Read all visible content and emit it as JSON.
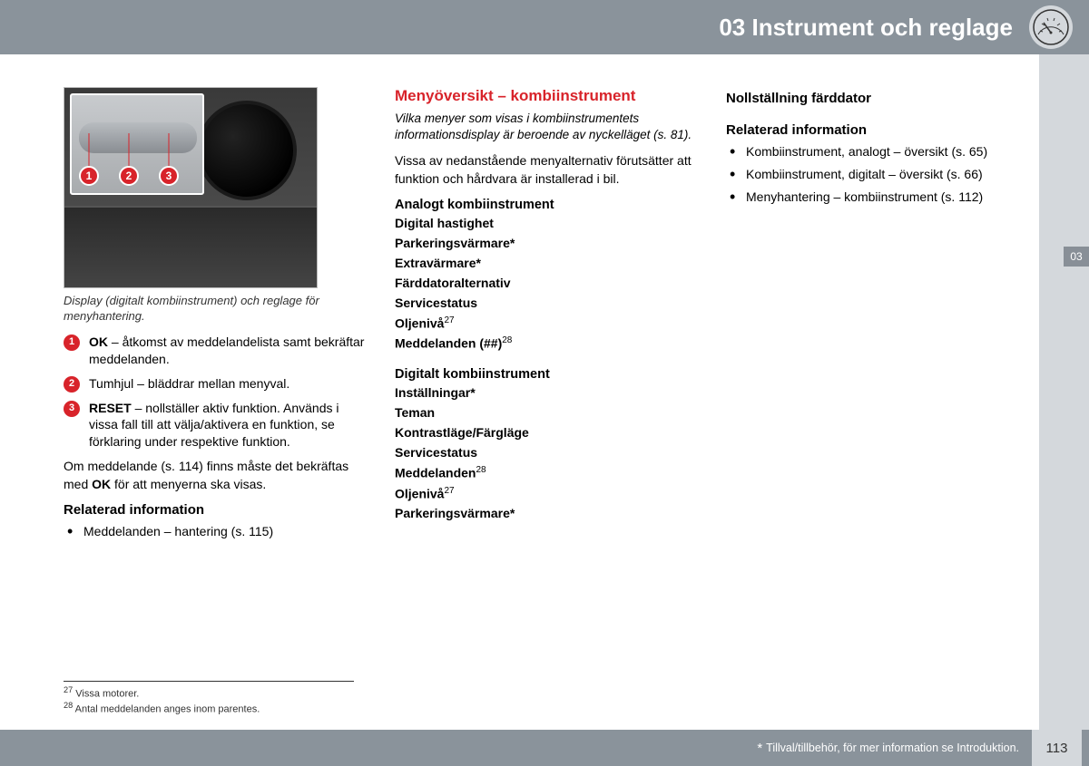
{
  "header": {
    "title": "03 Instrument och reglage",
    "sectionTab": "03"
  },
  "figure": {
    "caption": "Display (digitalt kombiinstrument) och reglage för menyhantering.",
    "callouts": [
      "1",
      "2",
      "3"
    ]
  },
  "legend": [
    {
      "num": "1",
      "textHtml": "<b>OK</b> – åtkomst av meddelandelista samt bekräftar meddelanden."
    },
    {
      "num": "2",
      "textHtml": "Tumhjul – bläddrar mellan menyval."
    },
    {
      "num": "3",
      "textHtml": "<b>RESET</b> – nollställer aktiv funktion. Används i vissa fall till att välja/aktivera en funktion, se förklaring under respektive funktion."
    }
  ],
  "col1": {
    "paraHtml": "Om meddelande (s. 114) finns måste det bekräftas med <b>OK</b> för att menyerna ska visas.",
    "relHeading": "Relaterad information",
    "relItems": [
      "Meddelanden – hantering (s. 115)"
    ]
  },
  "col2": {
    "title": "Menyöversikt – kombiinstrument",
    "intro": "Vilka menyer som visas i kombiinstrumentets informationsdisplay är beroende av nyckelläget (s. 81).",
    "para": "Vissa av nedanstående menyalternativ förutsätter att funktion och hårdvara är installerad i bil.",
    "group1Heading": "Analogt kombiinstrument",
    "group1": [
      "Digital hastighet",
      "Parkeringsvärmare*",
      "Extravärmare*",
      "Färddatoralternativ",
      "Servicestatus",
      "Oljenivå<sup>27</sup>",
      "Meddelanden (##)<sup>28</sup>"
    ],
    "group2Heading": "Digitalt kombiinstrument",
    "group2": [
      "Inställningar*",
      "Teman",
      "Kontrastläge/Färgläge",
      "Servicestatus",
      "Meddelanden<sup>28</sup>",
      "Oljenivå<sup>27</sup>",
      "Parkeringsvärmare*"
    ]
  },
  "col3": {
    "topHeading": "Nollställning färddator",
    "relHeading": "Relaterad information",
    "relItems": [
      "Kombiinstrument, analogt – översikt (s. 65)",
      "Kombiinstrument, digitalt – översikt (s. 66)",
      "Menyhantering – kombiinstrument (s. 112)"
    ]
  },
  "footnotes": [
    {
      "num": "27",
      "text": "Vissa motorer."
    },
    {
      "num": "28",
      "text": "Antal meddelanden anges inom parentes."
    }
  ],
  "footer": {
    "note": "Tillval/tillbehör, för mer information se Introduktion.",
    "pageNumber": "113"
  }
}
